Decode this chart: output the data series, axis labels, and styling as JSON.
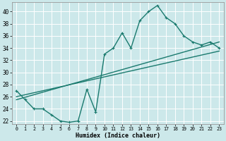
{
  "xlabel": "Humidex (Indice chaleur)",
  "background_color": "#cce8ea",
  "grid_color": "#ffffff",
  "line_color": "#1a7a6e",
  "xlim": [
    -0.5,
    23.5
  ],
  "ylim": [
    21.5,
    41.5
  ],
  "yticks": [
    22,
    24,
    26,
    28,
    30,
    32,
    34,
    36,
    38,
    40
  ],
  "xticks": [
    0,
    1,
    2,
    3,
    4,
    5,
    6,
    7,
    8,
    9,
    10,
    11,
    12,
    13,
    14,
    15,
    16,
    17,
    18,
    19,
    20,
    21,
    22,
    23
  ],
  "curve_x": [
    0,
    1,
    2,
    3,
    4,
    5,
    6,
    7,
    8,
    9,
    10,
    11,
    12,
    13,
    14,
    15,
    16,
    17,
    18,
    19,
    20,
    21,
    22,
    23
  ],
  "curve_y": [
    27,
    25.5,
    24,
    24,
    23,
    22,
    21.8,
    22,
    27.2,
    23.5,
    33,
    34,
    36.5,
    34,
    38.5,
    40,
    41,
    39,
    38,
    36,
    35,
    34.5,
    35,
    34
  ],
  "line1_x": [
    0,
    23
  ],
  "line1_y": [
    25.5,
    35
  ],
  "line2_x": [
    0,
    23
  ],
  "line2_y": [
    26.0,
    33.5
  ],
  "marker_size": 2.5,
  "line_width": 1.0
}
